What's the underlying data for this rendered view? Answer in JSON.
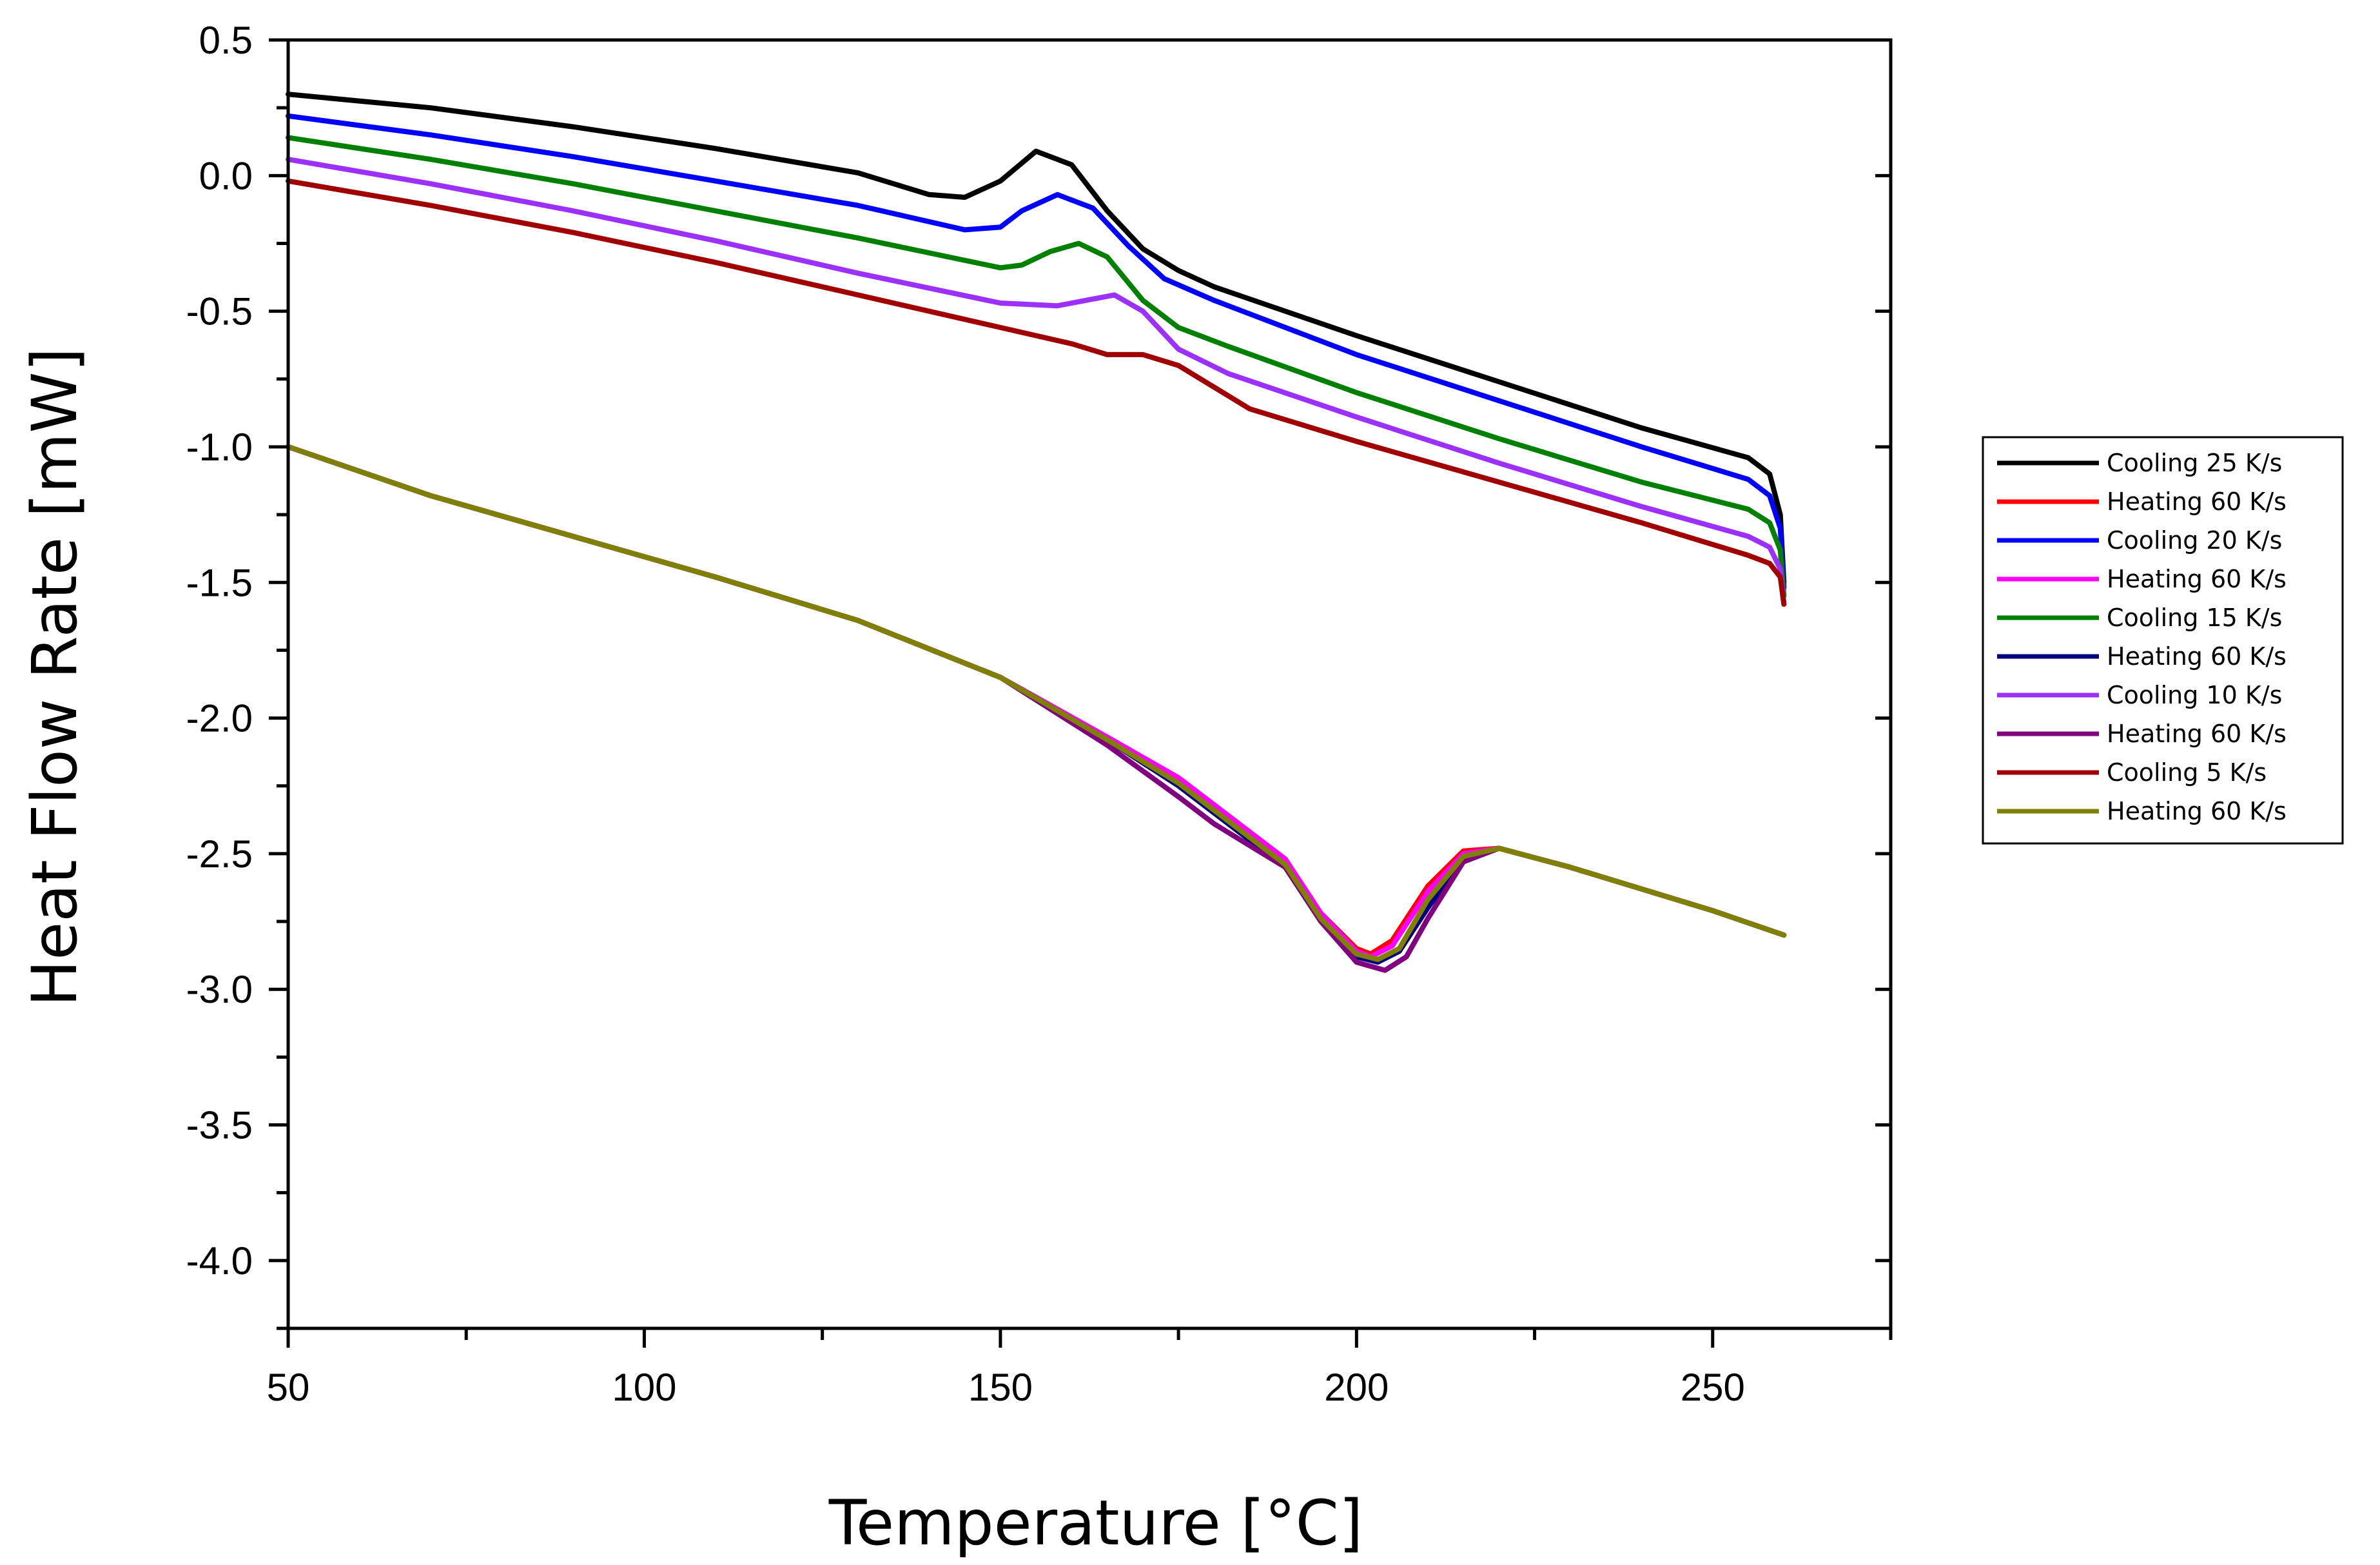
{
  "chart_data": {
    "type": "line",
    "title": "",
    "xlabel": "Temperature [°C]",
    "ylabel": "Heat Flow Rate [mW]",
    "xlim": [
      50,
      275
    ],
    "ylim": [
      -4.25,
      0.5
    ],
    "xticks": [
      50,
      100,
      150,
      200,
      250
    ],
    "xtick_labels": [
      "50",
      "100",
      "150",
      "200",
      "250"
    ],
    "yticks": [
      0.5,
      0.0,
      -0.5,
      -1.0,
      -1.5,
      -2.0,
      -2.5,
      -3.0,
      -3.5,
      -4.0
    ],
    "ytick_labels": [
      "0.5",
      "0.0",
      "-0.5",
      "-1.0",
      "-1.5",
      "-2.0",
      "-2.5",
      "-3.0",
      "-3.5",
      "-4.0"
    ],
    "grid": false,
    "legend_position": "right",
    "series": [
      {
        "name": "Cooling 25 K/s",
        "color": "#000000",
        "x": [
          50,
          70,
          90,
          110,
          130,
          140,
          145,
          150,
          155,
          160,
          165,
          170,
          175,
          180,
          190,
          200,
          220,
          240,
          255,
          258,
          259.5,
          260
        ],
        "y": [
          0.3,
          0.25,
          0.18,
          0.1,
          0.01,
          -0.07,
          -0.08,
          -0.02,
          0.09,
          0.04,
          -0.13,
          -0.27,
          -0.35,
          -0.41,
          -0.5,
          -0.59,
          -0.76,
          -0.93,
          -1.04,
          -1.1,
          -1.25,
          -1.5
        ]
      },
      {
        "name": "Heating 60 K/s",
        "color": "#ff0000",
        "x": [
          50,
          70,
          90,
          110,
          130,
          150,
          165,
          175,
          180,
          190,
          195,
          200,
          202,
          205,
          210,
          215,
          220,
          230,
          240,
          250,
          260
        ],
        "y": [
          -1.0,
          -1.18,
          -1.33,
          -1.48,
          -1.64,
          -1.85,
          -2.07,
          -2.22,
          -2.32,
          -2.52,
          -2.72,
          -2.85,
          -2.87,
          -2.82,
          -2.62,
          -2.49,
          -2.48,
          -2.55,
          -2.63,
          -2.71,
          -2.8
        ]
      },
      {
        "name": "Cooling 20 K/s",
        "color": "#0000ff",
        "x": [
          50,
          70,
          90,
          110,
          130,
          145,
          150,
          153,
          158,
          163,
          168,
          173,
          180,
          200,
          220,
          240,
          255,
          258,
          259.5,
          260
        ],
        "y": [
          0.22,
          0.15,
          0.07,
          -0.02,
          -0.11,
          -0.2,
          -0.19,
          -0.13,
          -0.07,
          -0.12,
          -0.26,
          -0.38,
          -0.46,
          -0.66,
          -0.83,
          -1.0,
          -1.12,
          -1.18,
          -1.3,
          -1.52
        ]
      },
      {
        "name": "Heating 60 K/s",
        "color": "#ff00ff",
        "x": [
          50,
          70,
          90,
          110,
          130,
          150,
          165,
          175,
          180,
          190,
          195,
          200,
          202,
          205,
          210,
          215,
          220,
          230,
          240,
          250,
          260
        ],
        "y": [
          -1.0,
          -1.18,
          -1.33,
          -1.48,
          -1.64,
          -1.85,
          -2.07,
          -2.22,
          -2.32,
          -2.52,
          -2.72,
          -2.86,
          -2.88,
          -2.84,
          -2.64,
          -2.5,
          -2.48,
          -2.55,
          -2.63,
          -2.71,
          -2.8
        ]
      },
      {
        "name": "Cooling 15 K/s",
        "color": "#008000",
        "x": [
          50,
          70,
          90,
          110,
          130,
          150,
          153,
          157,
          161,
          165,
          170,
          175,
          182,
          200,
          220,
          240,
          255,
          258,
          259.5,
          260
        ],
        "y": [
          0.14,
          0.06,
          -0.03,
          -0.13,
          -0.23,
          -0.34,
          -0.33,
          -0.28,
          -0.25,
          -0.3,
          -0.46,
          -0.56,
          -0.63,
          -0.8,
          -0.97,
          -1.13,
          -1.23,
          -1.28,
          -1.38,
          -1.55
        ]
      },
      {
        "name": "Heating 60 K/s",
        "color": "#000080",
        "x": [
          50,
          70,
          90,
          110,
          130,
          150,
          165,
          175,
          180,
          190,
          195,
          200,
          203,
          206,
          210,
          215,
          220,
          230,
          240,
          250,
          260
        ],
        "y": [
          -1.0,
          -1.18,
          -1.33,
          -1.48,
          -1.64,
          -1.85,
          -2.08,
          -2.25,
          -2.35,
          -2.55,
          -2.75,
          -2.88,
          -2.9,
          -2.86,
          -2.7,
          -2.52,
          -2.48,
          -2.55,
          -2.63,
          -2.71,
          -2.8
        ]
      },
      {
        "name": "Cooling 10 K/s",
        "color": "#9b30ff",
        "x": [
          50,
          70,
          90,
          110,
          130,
          150,
          158,
          162,
          166,
          170,
          175,
          182,
          200,
          220,
          240,
          255,
          258,
          259.5,
          260
        ],
        "y": [
          0.06,
          -0.03,
          -0.13,
          -0.24,
          -0.36,
          -0.47,
          -0.48,
          -0.46,
          -0.44,
          -0.5,
          -0.64,
          -0.73,
          -0.89,
          -1.06,
          -1.22,
          -1.33,
          -1.37,
          -1.45,
          -1.58
        ]
      },
      {
        "name": "Heating 60 K/s",
        "color": "#800080",
        "x": [
          50,
          70,
          90,
          110,
          130,
          150,
          165,
          175,
          180,
          190,
          195,
          200,
          204,
          207,
          210,
          215,
          220,
          230,
          240,
          250,
          260
        ],
        "y": [
          -1.0,
          -1.18,
          -1.33,
          -1.48,
          -1.64,
          -1.85,
          -2.1,
          -2.29,
          -2.39,
          -2.55,
          -2.75,
          -2.9,
          -2.93,
          -2.88,
          -2.74,
          -2.53,
          -2.48,
          -2.55,
          -2.63,
          -2.71,
          -2.8
        ]
      },
      {
        "name": "Cooling 5 K/s",
        "color": "#a00000",
        "x": [
          50,
          70,
          90,
          110,
          130,
          150,
          160,
          165,
          170,
          175,
          180,
          185,
          200,
          220,
          240,
          255,
          258,
          259.5,
          260
        ],
        "y": [
          -0.02,
          -0.11,
          -0.21,
          -0.32,
          -0.44,
          -0.56,
          -0.62,
          -0.66,
          -0.66,
          -0.7,
          -0.78,
          -0.86,
          -0.98,
          -1.13,
          -1.28,
          -1.4,
          -1.43,
          -1.48,
          -1.58
        ]
      },
      {
        "name": "Heating 60 K/s",
        "color": "#808000",
        "x": [
          50,
          70,
          90,
          110,
          130,
          150,
          165,
          175,
          180,
          190,
          195,
          200,
          203,
          206,
          210,
          215,
          220,
          230,
          240,
          250,
          260
        ],
        "y": [
          -1.0,
          -1.18,
          -1.33,
          -1.48,
          -1.64,
          -1.85,
          -2.08,
          -2.24,
          -2.34,
          -2.54,
          -2.74,
          -2.87,
          -2.89,
          -2.85,
          -2.67,
          -2.51,
          -2.48,
          -2.55,
          -2.63,
          -2.71,
          -2.8
        ]
      }
    ]
  }
}
